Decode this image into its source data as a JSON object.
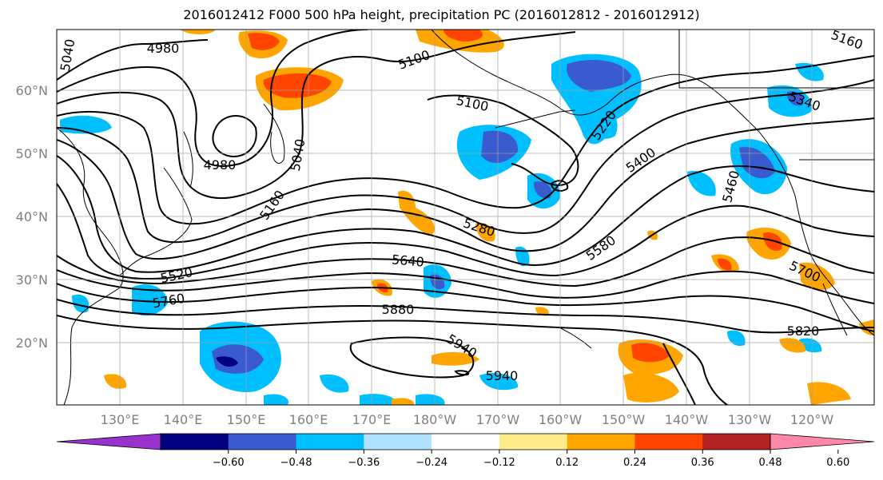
{
  "title": "2016012412 F000 500 hPa height, precipitation PC (2016012812 - 2016012912)",
  "lat_labels": [
    "60°N",
    "50°N",
    "40°N",
    "30°N",
    "20°N"
  ],
  "lon_labels": [
    "130°E",
    "140°E",
    "150°E",
    "160°E",
    "170°E",
    "180°W",
    "170°W",
    "160°W",
    "150°W",
    "140°W",
    "130°W",
    "120°W"
  ],
  "contour_labels": [
    "5040",
    "4980",
    "4980",
    "5040",
    "5100",
    "5100",
    "5160",
    "5220",
    "5160",
    "5280",
    "5340",
    "5400",
    "5460",
    "5520",
    "5580",
    "5640",
    "5700",
    "5760",
    "5820",
    "5880",
    "5940",
    "5940"
  ],
  "colorbar": {
    "ticks": [
      "−0.60",
      "−0.48",
      "−0.36",
      "−0.24",
      "−0.12",
      "0.12",
      "0.24",
      "0.36",
      "0.48",
      "0.60"
    ],
    "colors": [
      "#9932cc",
      "#000080",
      "#3a5bd0",
      "#00bfff",
      "#b0e2ff",
      "#ffffff",
      "#ffec8b",
      "#ffa500",
      "#ff4500",
      "#b22222",
      "#ff88aa"
    ]
  }
}
